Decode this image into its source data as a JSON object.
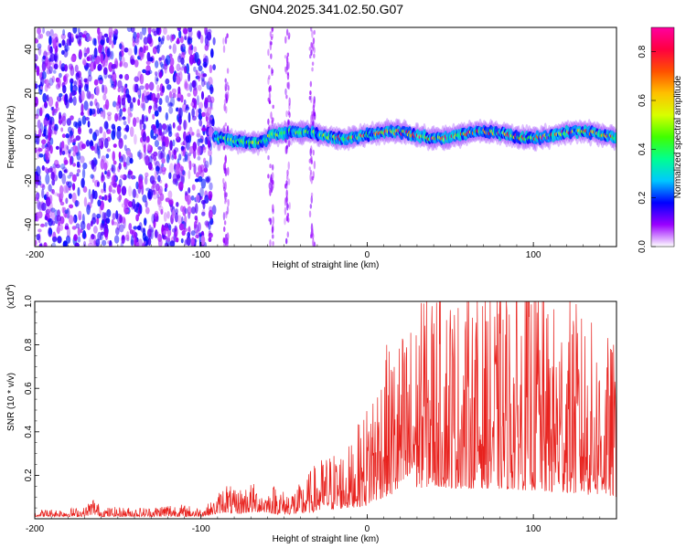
{
  "title": "GN04.2025.341.02.50.G07",
  "chart_data": [
    {
      "type": "heatmap",
      "name": "spectrogram",
      "xlabel": "Height of straight line (km)",
      "ylabel": "Frequency (Hz)",
      "xlim": [
        -200,
        150
      ],
      "ylim": [
        -50,
        50
      ],
      "xticks": [
        -200,
        -100,
        0,
        100
      ],
      "yticks": [
        40,
        20,
        0,
        -20,
        -40
      ],
      "colorbar": {
        "label": "Normalized spectral amplitude",
        "range": [
          0.0,
          0.9
        ],
        "ticks": [
          0.0,
          0.2,
          0.4,
          0.6,
          0.8
        ],
        "colormap": [
          "#ffffff",
          "#9a00ff",
          "#0000ff",
          "#00c8ff",
          "#00ff90",
          "#40ff00",
          "#d8ff00",
          "#ffc000",
          "#ff5000",
          "#ff0040",
          "#ff00a0"
        ]
      },
      "regions": [
        {
          "description": "scattered noise",
          "x_range": [
            -200,
            -92
          ],
          "freq_range": [
            -50,
            50
          ],
          "amplitude_range": [
            0.0,
            0.15
          ]
        },
        {
          "description": "noise streaks",
          "x_centers": [
            -85,
            -58,
            -48,
            -33
          ],
          "freq_range": [
            -50,
            50
          ],
          "amplitude_range": [
            0.0,
            0.1
          ]
        },
        {
          "description": "signal band",
          "x_range": [
            -92,
            150
          ],
          "freq_center": 1,
          "freq_halfwidth": 4,
          "amplitude_range": [
            0.15,
            0.9
          ]
        }
      ]
    },
    {
      "type": "line",
      "name": "snr",
      "xlabel": "Height of straight line (km)",
      "ylabel": "SNR (10 * v/v)",
      "yscale_label": "(x10",
      "yscale_exp": "4",
      "yscale_close": ")",
      "xlim": [
        -200,
        150
      ],
      "ylim": [
        0,
        1.0
      ],
      "xticks": [
        -200,
        -100,
        0,
        100
      ],
      "yticks": [
        0.2,
        0.4,
        0.6,
        0.8,
        1.0
      ],
      "line_color": "#e8221e",
      "x_step": 0.25,
      "envelope": {
        "x": [
          -200,
          -170,
          -165,
          -160,
          -130,
          -120,
          -100,
          -92,
          -85,
          -80,
          -70,
          -60,
          -55,
          -50,
          -40,
          -33,
          -25,
          -10,
          0,
          5,
          10,
          20,
          30,
          40,
          50,
          70,
          100,
          110,
          120,
          130,
          140,
          150
        ],
        "baseline": [
          0.01,
          0.01,
          0.02,
          0.01,
          0.01,
          0.01,
          0.01,
          0.02,
          0.03,
          0.02,
          0.03,
          0.03,
          0.02,
          0.02,
          0.02,
          0.03,
          0.04,
          0.05,
          0.06,
          0.08,
          0.1,
          0.12,
          0.14,
          0.15,
          0.14,
          0.14,
          0.13,
          0.12,
          0.12,
          0.11,
          0.11,
          0.1
        ],
        "peak": [
          0.04,
          0.05,
          0.1,
          0.05,
          0.05,
          0.07,
          0.05,
          0.08,
          0.17,
          0.12,
          0.16,
          0.12,
          0.16,
          0.12,
          0.15,
          0.22,
          0.28,
          0.32,
          0.5,
          0.55,
          0.63,
          0.7,
          0.78,
          0.9,
          0.85,
          0.82,
          0.9,
          0.78,
          0.85,
          0.76,
          0.7,
          0.65
        ]
      },
      "notable_peaks": [
        {
          "x": 34,
          "y": 0.99
        },
        {
          "x": 103,
          "y": 1.02
        },
        {
          "x": 124,
          "y": 0.91
        },
        {
          "x": 50,
          "y": 0.96
        },
        {
          "x": 131,
          "y": 0.84
        }
      ]
    }
  ]
}
